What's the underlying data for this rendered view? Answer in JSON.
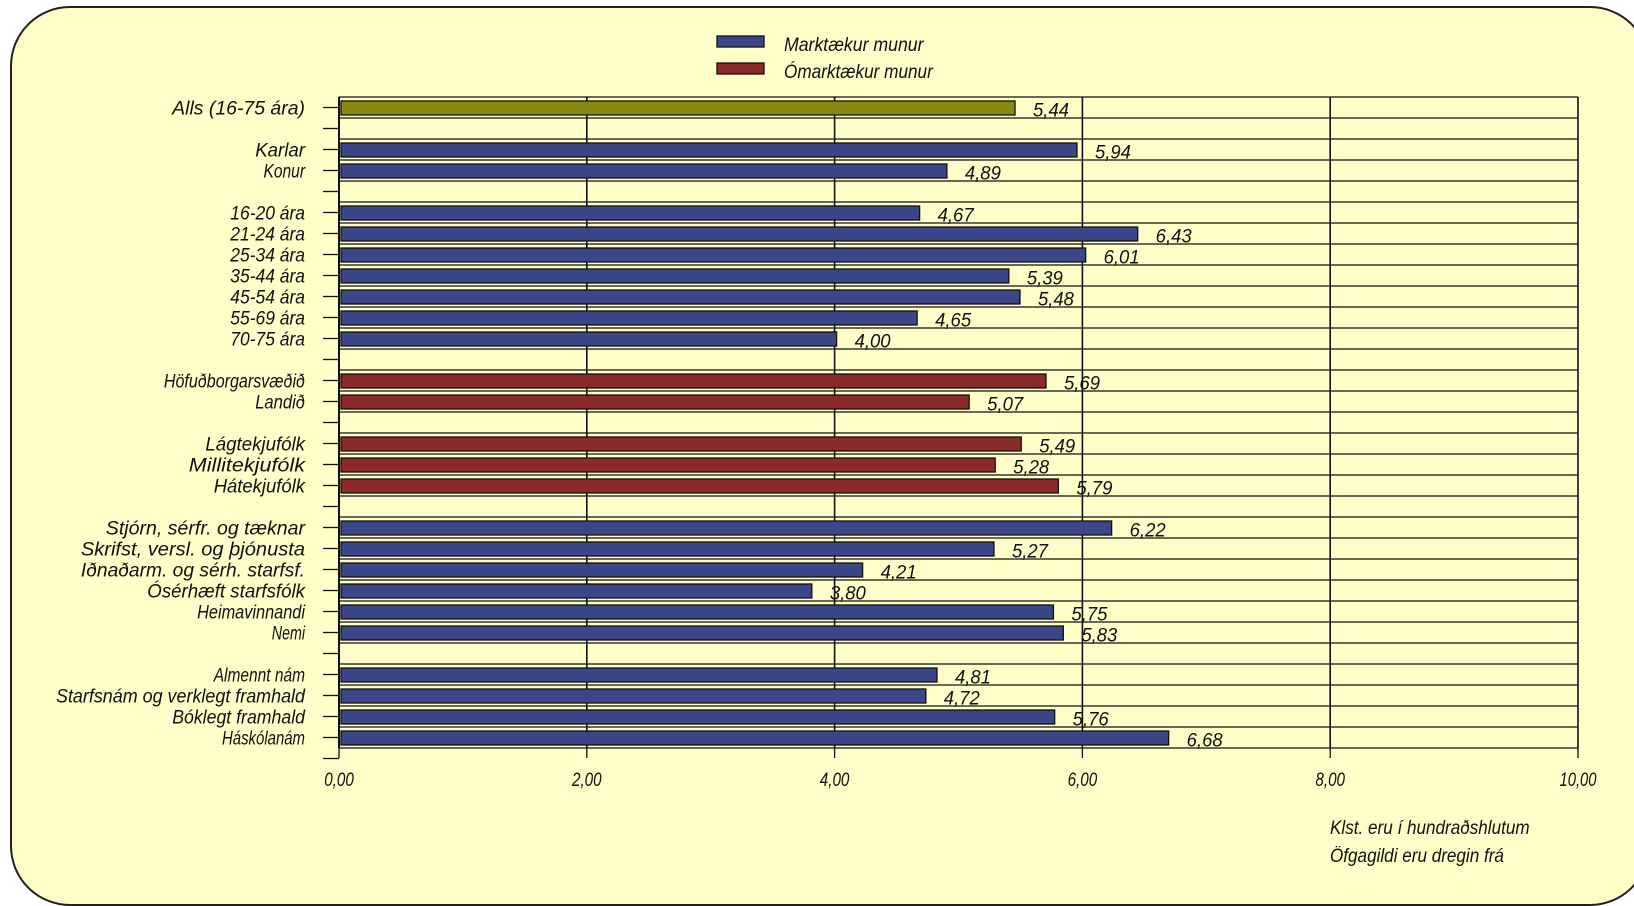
{
  "chart_data": {
    "type": "bar",
    "orientation": "horizontal",
    "legend": [
      {
        "name": "Marktækur munur",
        "color": "#3a4688"
      },
      {
        "name": "Ómarktækur munur",
        "color": "#8b2a2a"
      }
    ],
    "categories": [
      "Alls (16-75 ára)",
      "",
      "Karlar",
      "Konur",
      "",
      "16-20 ára",
      "21-24 ára",
      "25-34 ára",
      "35-44 ára",
      "45-54 ára",
      "55-69 ára",
      "70-75 ára",
      "",
      "Höfuðborgarsvæðið",
      "Landið",
      "",
      "Lágtekjufólk",
      "Millitekjufólk",
      "Hátekjufólk",
      "",
      "Stjórn, sérfr. og tæknar",
      "Skrifst, versl. og þjónusta",
      "Iðnaðarm. og sérh. starfsf.",
      "Ósérhæft starfsfólk",
      "Heimavinnandi",
      "Nemi",
      "",
      "Almennt nám",
      "Starfsnám og verklegt framhald",
      "Bóklegt framhald",
      "Háskólanám"
    ],
    "values": [
      5.44,
      null,
      5.94,
      4.89,
      null,
      4.67,
      6.43,
      6.01,
      5.39,
      5.48,
      4.65,
      4.0,
      null,
      5.69,
      5.07,
      null,
      5.49,
      5.28,
      5.79,
      null,
      6.22,
      5.27,
      4.21,
      3.8,
      5.75,
      5.83,
      null,
      4.81,
      4.72,
      5.76,
      6.68
    ],
    "value_labels": [
      "5,44",
      "",
      "5,94",
      "4,89",
      "",
      "4,67",
      "6,43",
      "6,01",
      "5,39",
      "5,48",
      "4,65",
      "4,00",
      "",
      "5,69",
      "5,07",
      "",
      "5,49",
      "5,28",
      "5,79",
      "",
      "6,22",
      "5,27",
      "4,21",
      "3,80",
      "5,75",
      "5,83",
      "",
      "4,81",
      "4,72",
      "5,76",
      "6,68"
    ],
    "bar_colors": [
      "#8a8a10",
      "",
      "#3a4688",
      "#3a4688",
      "",
      "#3a4688",
      "#3a4688",
      "#3a4688",
      "#3a4688",
      "#3a4688",
      "#3a4688",
      "#3a4688",
      "",
      "#8b2a2a",
      "#8b2a2a",
      "",
      "#8b2a2a",
      "#8b2a2a",
      "#8b2a2a",
      "",
      "#3a4688",
      "#3a4688",
      "#3a4688",
      "#3a4688",
      "#3a4688",
      "#3a4688",
      "",
      "#3a4688",
      "#3a4688",
      "#3a4688",
      "#3a4688"
    ],
    "xlim": [
      0,
      10
    ],
    "xticks": [
      "0,00",
      "2,00",
      "4,00",
      "6,00",
      "8,00",
      "10,00"
    ],
    "grid": true,
    "legend_position": "top-center",
    "background_color": "#fffdc8"
  },
  "notes": {
    "line1": "Klst. eru í hundraðshlutum",
    "line2": "Öfgagildi eru dregin frá"
  }
}
